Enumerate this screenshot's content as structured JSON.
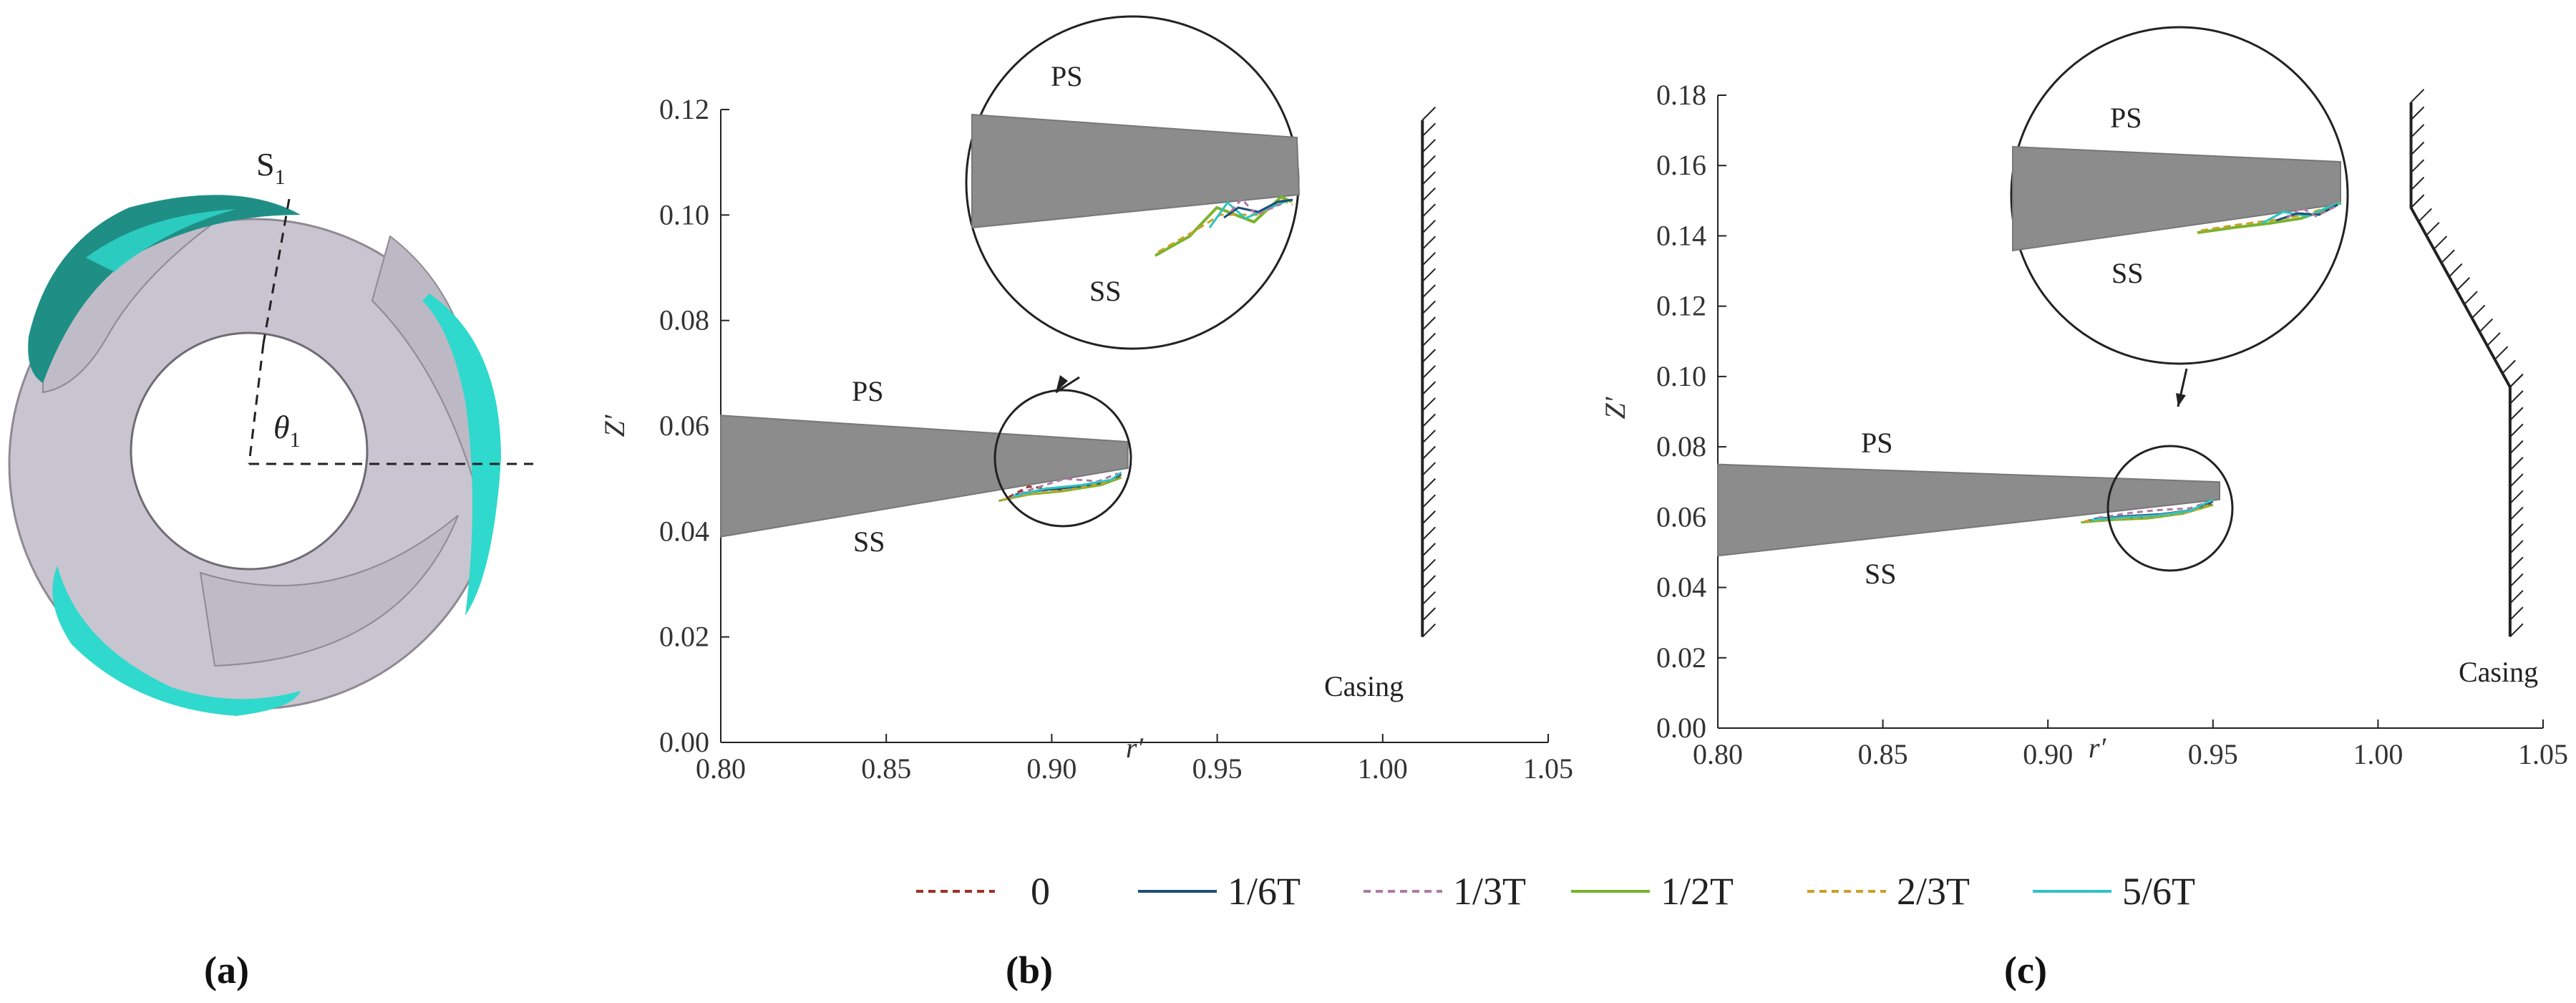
{
  "figure": {
    "panel_labels": [
      "(a)",
      "(b)",
      "(c)"
    ],
    "impeller": {
      "section_label": "S",
      "section_sub": "1",
      "angle_label": "θ",
      "angle_sub": "1"
    }
  },
  "colors": {
    "blade": "#8c8c8c",
    "impeller_body": "#c3bfca",
    "cavity": "#2fd9cd",
    "series": [
      "#9b3028",
      "#1f4e79",
      "#b07aa1",
      "#7ab32e",
      "#c9a227",
      "#2ec4c4"
    ]
  },
  "chart_data": [
    {
      "type": "line",
      "title": "",
      "xlabel": "r′",
      "ylabel": "Z′",
      "xlim": [
        0.8,
        1.05
      ],
      "ylim": [
        0.0,
        0.12
      ],
      "xticks": [
        0.8,
        0.85,
        0.9,
        0.95,
        1.0,
        1.05
      ],
      "yticks": [
        0.0,
        0.02,
        0.04,
        0.06,
        0.08,
        0.1,
        0.12
      ],
      "xtick_labels": [
        "0.80",
        "0.85",
        "0.90",
        "0.95",
        "1.00",
        "1.05"
      ],
      "ytick_labels": [
        "0.00",
        "0.02",
        "0.04",
        "0.06",
        "0.08",
        "0.10",
        "0.12"
      ],
      "blade": {
        "r": [
          0.8,
          0.923,
          0.923,
          0.8
        ],
        "z": [
          0.062,
          0.057,
          0.052,
          0.039
        ]
      },
      "casing": {
        "r": [
          1.012,
          1.012
        ],
        "z": [
          0.02,
          0.118
        ]
      },
      "annotations": [
        "PS",
        "SS",
        "Casing"
      ],
      "series": [
        {
          "name": "0",
          "dashed": true,
          "r": [
            0.887,
            0.893,
            0.905,
            0.915,
            0.921
          ],
          "z": [
            0.0465,
            0.0485,
            0.0478,
            0.049,
            0.0505
          ]
        },
        {
          "name": "1/6T",
          "dashed": false,
          "r": [
            0.889,
            0.897,
            0.908,
            0.917,
            0.921
          ],
          "z": [
            0.047,
            0.0478,
            0.0485,
            0.0495,
            0.0508
          ]
        },
        {
          "name": "1/3T",
          "dashed": true,
          "r": [
            0.89,
            0.899,
            0.904,
            0.914,
            0.92
          ],
          "z": [
            0.0472,
            0.049,
            0.05,
            0.0495,
            0.051
          ]
        },
        {
          "name": "1/2T",
          "dashed": false,
          "r": [
            0.884,
            0.893,
            0.903,
            0.915,
            0.921
          ],
          "z": [
            0.0458,
            0.047,
            0.0476,
            0.0488,
            0.0502
          ]
        },
        {
          "name": "2/3T",
          "dashed": true,
          "r": [
            0.885,
            0.895,
            0.906,
            0.916,
            0.921
          ],
          "z": [
            0.046,
            0.0472,
            0.048,
            0.0492,
            0.0504
          ]
        },
        {
          "name": "5/6T",
          "dashed": false,
          "r": [
            0.888,
            0.898,
            0.909,
            0.918,
            0.921
          ],
          "z": [
            0.0466,
            0.0481,
            0.0488,
            0.0498,
            0.0512
          ]
        }
      ]
    },
    {
      "type": "line",
      "title": "",
      "xlabel": "r′",
      "ylabel": "Z′",
      "xlim": [
        0.8,
        1.05
      ],
      "ylim": [
        0.0,
        0.18
      ],
      "xticks": [
        0.8,
        0.85,
        0.9,
        0.95,
        1.0,
        1.05
      ],
      "yticks": [
        0.0,
        0.02,
        0.04,
        0.06,
        0.08,
        0.1,
        0.12,
        0.14,
        0.16,
        0.18
      ],
      "xtick_labels": [
        "0.80",
        "0.85",
        "0.90",
        "0.95",
        "1.00",
        "1.05"
      ],
      "ytick_labels": [
        "0.00",
        "0.02",
        "0.04",
        "0.06",
        "0.08",
        "0.10",
        "0.12",
        "0.14",
        "0.16",
        "0.18"
      ],
      "blade": {
        "r": [
          0.8,
          0.952,
          0.952,
          0.8
        ],
        "z": [
          0.075,
          0.07,
          0.065,
          0.049
        ]
      },
      "casing": {
        "r": [
          1.01,
          1.01,
          1.04,
          1.04
        ],
        "z": [
          0.178,
          0.148,
          0.097,
          0.026
        ]
      },
      "annotations": [
        "PS",
        "SS",
        "Casing"
      ],
      "series": [
        {
          "name": "0",
          "dashed": true,
          "r": [
            0.912,
            0.922,
            0.932,
            0.942,
            0.95
          ],
          "z": [
            0.059,
            0.06,
            0.0598,
            0.0615,
            0.064
          ]
        },
        {
          "name": "1/6T",
          "dashed": false,
          "r": [
            0.914,
            0.924,
            0.934,
            0.944,
            0.95
          ],
          "z": [
            0.0595,
            0.0603,
            0.0608,
            0.062,
            0.0645
          ]
        },
        {
          "name": "1/3T",
          "dashed": true,
          "r": [
            0.915,
            0.925,
            0.933,
            0.943,
            0.95
          ],
          "z": [
            0.0598,
            0.0612,
            0.062,
            0.0625,
            0.0648
          ]
        },
        {
          "name": "1/2T",
          "dashed": false,
          "r": [
            0.91,
            0.92,
            0.93,
            0.941,
            0.95
          ],
          "z": [
            0.0585,
            0.0592,
            0.0596,
            0.061,
            0.0635
          ]
        },
        {
          "name": "2/3T",
          "dashed": true,
          "r": [
            0.911,
            0.921,
            0.931,
            0.942,
            0.95
          ],
          "z": [
            0.0588,
            0.0595,
            0.06,
            0.0613,
            0.0638
          ]
        },
        {
          "name": "5/6T",
          "dashed": false,
          "r": [
            0.913,
            0.923,
            0.933,
            0.943,
            0.95
          ],
          "z": [
            0.0592,
            0.06,
            0.0605,
            0.0618,
            0.065
          ]
        }
      ]
    }
  ]
}
